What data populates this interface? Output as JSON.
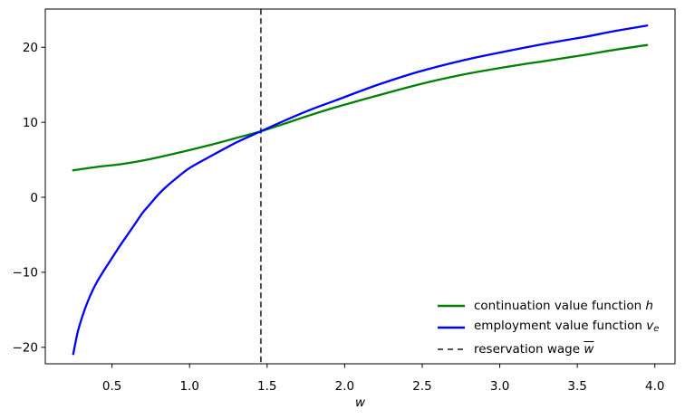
{
  "chart_data": {
    "type": "line",
    "title": "",
    "xlabel": "w",
    "ylabel": "",
    "xlim": [
      0.07,
      4.13
    ],
    "ylim": [
      -22.2,
      25.1
    ],
    "grid": false,
    "xticks": {
      "values": [
        0.5,
        1.0,
        1.5,
        2.0,
        2.5,
        3.0,
        3.5,
        4.0
      ],
      "labels": [
        "0.5",
        "1.0",
        "1.5",
        "2.0",
        "2.5",
        "3.0",
        "3.5",
        "4.0"
      ]
    },
    "yticks": {
      "values": [
        -20,
        -10,
        0,
        10,
        20
      ],
      "labels": [
        "−20",
        "−10",
        "0",
        "10",
        "20"
      ]
    },
    "series": [
      {
        "name": "continuation value function h",
        "color": "#008000",
        "style": "solid",
        "x": [
          0.25,
          0.4,
          0.55,
          0.7,
          0.9,
          1.12,
          1.3,
          1.46,
          1.61,
          1.77,
          1.94,
          2.2,
          2.47,
          2.75,
          3.05,
          3.3,
          3.55,
          3.75,
          3.95
        ],
        "y": [
          3.6,
          4.05,
          4.4,
          4.9,
          5.8,
          6.9,
          7.9,
          8.8,
          9.8,
          10.9,
          12.0,
          13.5,
          15.0,
          16.3,
          17.4,
          18.2,
          19.0,
          19.7,
          20.3
        ]
      },
      {
        "name": "employment value function v_e",
        "color": "#0000ff",
        "style": "solid",
        "x": [
          0.25,
          0.28,
          0.32,
          0.36,
          0.4,
          0.45,
          0.5,
          0.55,
          0.6,
          0.65,
          0.7,
          0.75,
          0.8,
          0.85,
          0.9,
          1.0,
          1.12,
          1.3,
          1.46,
          1.61,
          1.77,
          1.94,
          2.2,
          2.47,
          2.75,
          3.05,
          3.3,
          3.55,
          3.75,
          3.95
        ],
        "y": [
          -20.9,
          -17.9,
          -15.2,
          -13.1,
          -11.4,
          -9.7,
          -8.1,
          -6.5,
          -5.0,
          -3.5,
          -2.0,
          -0.8,
          0.4,
          1.4,
          2.3,
          3.9,
          5.3,
          7.3,
          8.8,
          10.2,
          11.6,
          12.9,
          14.9,
          16.7,
          18.2,
          19.5,
          20.5,
          21.4,
          22.2,
          22.9
        ]
      }
    ],
    "vline": {
      "name": "reservation wage w̄",
      "x": 1.46,
      "color": "#1c1c1c",
      "style": "dashed"
    },
    "legend": {
      "position": "lower right",
      "frame": false,
      "items": [
        {
          "prefix": "continuation value function ",
          "symbol": "h",
          "subscript": "",
          "bar": false,
          "sample": "solid",
          "color": "#008000"
        },
        {
          "prefix": "employment value function ",
          "symbol": "v",
          "subscript": "e",
          "bar": false,
          "sample": "solid",
          "color": "#0000ff"
        },
        {
          "prefix": "reservation wage ",
          "symbol": "w",
          "subscript": "",
          "bar": true,
          "sample": "dashed",
          "color": "#1c1c1c"
        }
      ]
    }
  }
}
